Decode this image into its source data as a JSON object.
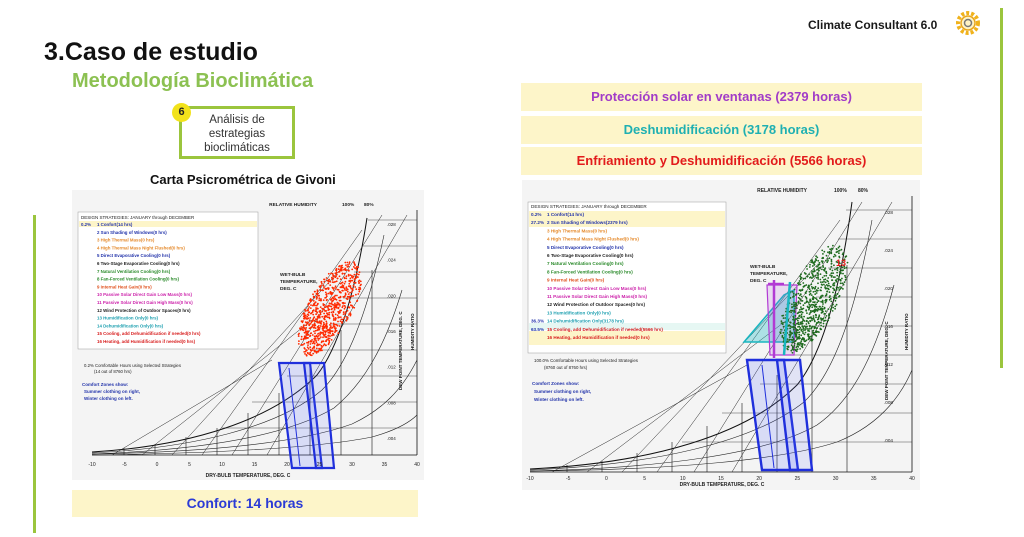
{
  "brand": {
    "name": "Climate Consultant 6.0",
    "logo_icon": "gear-sun-icon"
  },
  "slide": {
    "title": "3.Caso de estudio",
    "subtitle": "Metodología Bioclimática"
  },
  "step": {
    "number": "6",
    "lines": [
      "Análisis de",
      "estrategias",
      "bioclimáticas"
    ]
  },
  "chart_heading": "Carta Psicrométrica de Givoni",
  "left_chart": {
    "header": {
      "rh": "RELATIVE HUMIDITY",
      "p100": "100%",
      "p80": "80%"
    },
    "legend_title": "DESIGN STRATEGIES:  JANUARY through DECEMBER",
    "strategies": [
      {
        "pct": "0.2%",
        "label": "1  Confort(14 hrs)",
        "color": "#2233aa"
      },
      {
        "pct": "",
        "label": "2  Sun Shading of Windows(0 hrs)",
        "color": "#2233aa"
      },
      {
        "pct": "",
        "label": "3  High Thermal Mass(0 hrs)",
        "color": "#e58a2c"
      },
      {
        "pct": "",
        "label": "4  High Thermal Mass Night Flushed(0 hrs)",
        "color": "#e58a2c"
      },
      {
        "pct": "",
        "label": "5  Direct Evaporative Cooling(0 hrs)",
        "color": "#2233aa"
      },
      {
        "pct": "",
        "label": "6  Two-Stage Evaporative Cooling(0 hrs)",
        "color": "#222222"
      },
      {
        "pct": "",
        "label": "7  Natural Ventilation Cooling(0 hrs)",
        "color": "#2a8a2a"
      },
      {
        "pct": "",
        "label": "8  Fan-Forced Ventilation Cooling(0 hrs)",
        "color": "#2a8a2a"
      },
      {
        "pct": "",
        "label": "9  Internal Heat Gain(0 hrs)",
        "color": "#e0521f"
      },
      {
        "pct": "",
        "label": "10  Passive Solar Direct Gain Low Mass(0 hrs)",
        "color": "#cc22aa"
      },
      {
        "pct": "",
        "label": "11  Passive Solar Direct Gain High Mass(0 hrs)",
        "color": "#cc22aa"
      },
      {
        "pct": "",
        "label": "12  Wind Protection of Outdoor Spaces(0 hrs)",
        "color": "#222222"
      },
      {
        "pct": "",
        "label": "13  Humidification Only(0 hrs)",
        "color": "#1fa0b0"
      },
      {
        "pct": "",
        "label": "14  Dehumidification Only(0 hrs)",
        "color": "#1fa0b0"
      },
      {
        "pct": "",
        "label": "15  Cooling, add Dehumidification if needed(0 hrs)",
        "color": "#d82020"
      },
      {
        "pct": "",
        "label": "16  Heating, add Humidification if needed(0 hrs)",
        "color": "#d82020"
      }
    ],
    "summary": [
      "0.2%   Comfortable Hours using Selected Strategies",
      "(14 out of 8760 hrs)"
    ],
    "zones_title": "Comfort Zones show:",
    "zones_lines": [
      "Summer clothing on right,",
      "Winter clothing on left."
    ],
    "wet_bulb": [
      "WET-BULB",
      "TEMPERATURE,",
      "DEG. C"
    ],
    "x_axis_label": "DRY-BULB TEMPERATURE, DEG. C",
    "x_ticks": [
      "-10",
      "-5",
      "0",
      "5",
      "10",
      "15",
      "20",
      "25",
      "30",
      "35",
      "40"
    ],
    "y2_label": "DEW POINT TEMPERATURE, DEG. C",
    "y3_label": "HUMIDITY RATIO",
    "hr_ticks": [
      ".028",
      ".024",
      ".020",
      ".016",
      ".012",
      ".008",
      ".004"
    ]
  },
  "right_chart": {
    "header": {
      "rh": "RELATIVE HUMIDITY",
      "p100": "100%",
      "p80": "80%"
    },
    "legend_title": "DESIGN STRATEGIES:  JANUARY through DECEMBER",
    "strategies": [
      {
        "pct": "0.2%",
        "label": "1  Confort(14 hrs)",
        "color": "#2233aa"
      },
      {
        "pct": "27.2%",
        "label": "2  Sun Shading of Windows(2379 hrs)",
        "color": "#2233aa"
      },
      {
        "pct": "",
        "label": "3  High Thermal Mass(0 hrs)",
        "color": "#e58a2c"
      },
      {
        "pct": "",
        "label": "4  High Thermal Mass Night Flushed(0 hrs)",
        "color": "#e58a2c"
      },
      {
        "pct": "",
        "label": "5  Direct Evaporative Cooling(0 hrs)",
        "color": "#2233aa"
      },
      {
        "pct": "",
        "label": "6  Two-Stage Evaporative Cooling(0 hrs)",
        "color": "#222222"
      },
      {
        "pct": "",
        "label": "7  Natural Ventilation Cooling(0 hrs)",
        "color": "#2a8a2a"
      },
      {
        "pct": "",
        "label": "8  Fan-Forced Ventilation Cooling(0 hrs)",
        "color": "#2a8a2a"
      },
      {
        "pct": "",
        "label": "9  Internal Heat Gain(0 hrs)",
        "color": "#e0521f"
      },
      {
        "pct": "",
        "label": "10  Passive Solar Direct Gain Low Mass(0 hrs)",
        "color": "#cc22aa"
      },
      {
        "pct": "",
        "label": "11  Passive Solar Direct Gain High Mass(0 hrs)",
        "color": "#cc22aa"
      },
      {
        "pct": "",
        "label": "12  Wind Protection of Outdoor Spaces(0 hrs)",
        "color": "#222222"
      },
      {
        "pct": "",
        "label": "13  Humidification Only(0 hrs)",
        "color": "#1fa0b0"
      },
      {
        "pct": "36.3%",
        "label": "14  Dehumidification Only(3178 hrs)",
        "color": "#1fa0b0"
      },
      {
        "pct": "63.5%",
        "label": "15  Cooling, add Dehumidification if needed(5566 hrs)",
        "color": "#d82020"
      },
      {
        "pct": "",
        "label": "16  Heating, add Humidification if needed(0 hrs)",
        "color": "#d82020"
      }
    ],
    "summary": [
      "100.0%   Comfortable Hours using Selected Strategies",
      "(8760 out of 8760 hrs)"
    ],
    "zones_title": "Comfort Zones show:",
    "zones_lines": [
      "Summer clothing on right,",
      "Winter clothing on left."
    ],
    "wet_bulb": [
      "WET-BULB",
      "TEMPERATURE,",
      "DEG. C"
    ],
    "x_axis_label": "DRY-BULB TEMPERATURE, DEG. C",
    "x_ticks": [
      "-10",
      "-5",
      "0",
      "5",
      "10",
      "15",
      "20",
      "25",
      "30",
      "35",
      "40"
    ],
    "y2_label": "DEW POINT TEMPERATURE, DEG. C",
    "y3_label": "HUMIDITY RATIO",
    "hr_ticks": [
      ".028",
      ".024",
      ".020",
      ".016",
      ".012",
      ".008",
      ".004"
    ],
    "marker": "13"
  },
  "bars": {
    "comfort": "Confort: 14 horas",
    "sun_shading": "Protección solar en ventanas (2379 horas)",
    "dehumidification": "Deshumidificación (3178 horas)",
    "cooling": "Enfriamiento y Deshumidificación (5566 horas)"
  },
  "colors": {
    "accent_green": "#8cc152",
    "box_border": "#9bc53d",
    "highlight_bg": "#fdf5c9",
    "comfort_blue": "#2b3bd6",
    "sun_purple": "#a13bc8",
    "dehum_teal": "#1fb0b2",
    "cool_red": "#e21b1b",
    "scatter_left": "#ff2a00",
    "scatter_right": "#1f6b1f"
  }
}
